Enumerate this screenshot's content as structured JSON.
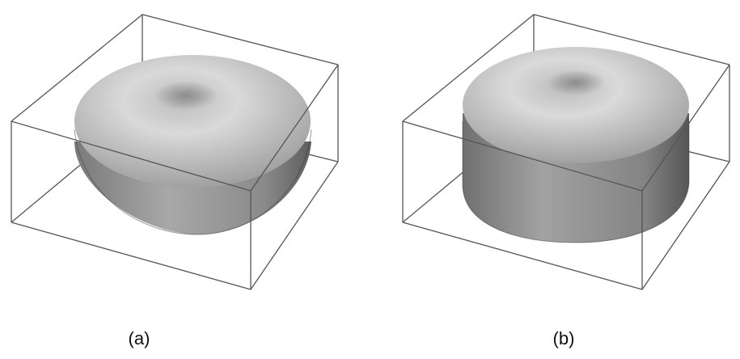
{
  "figure": {
    "panels": [
      {
        "label": "(a)",
        "shape": "rounded-torus-like solid with central dimple (shorter)"
      },
      {
        "label": "(b)",
        "shape": "rounded cylinder-like solid with central dimple (taller)"
      }
    ],
    "colors": {
      "background": "#ffffff",
      "box_edge": "#555555",
      "surface_light": "#d6d6d6",
      "surface_dark": "#6a6a6a"
    }
  }
}
